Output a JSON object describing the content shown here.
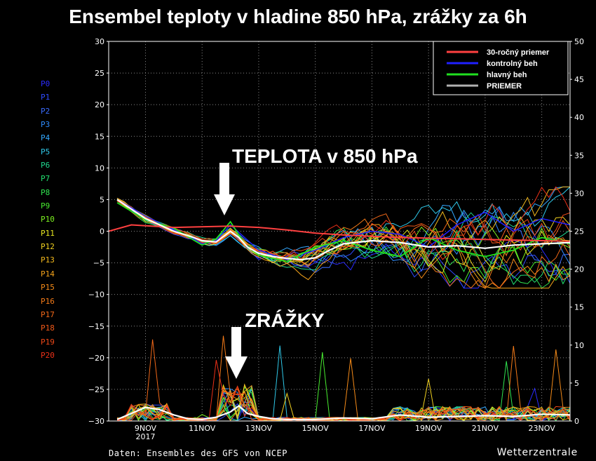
{
  "title": "Ensembel teploty v hladine 850 hPa, zrážky za 6h",
  "footer": {
    "source": "Daten: Ensembles des GFS von NCEP",
    "brand": "Wetterzentrale"
  },
  "members": [
    {
      "label": "P0",
      "color": "#2a2aff"
    },
    {
      "label": "P1",
      "color": "#2f4bff"
    },
    {
      "label": "P2",
      "color": "#3a6cff"
    },
    {
      "label": "P3",
      "color": "#2f8dff"
    },
    {
      "label": "P4",
      "color": "#34a8ff"
    },
    {
      "label": "P5",
      "color": "#2fc8e8"
    },
    {
      "label": "P6",
      "color": "#20d890"
    },
    {
      "label": "P7",
      "color": "#22e070"
    },
    {
      "label": "P8",
      "color": "#30e650"
    },
    {
      "label": "P9",
      "color": "#48ec30"
    },
    {
      "label": "P10",
      "color": "#7cf020"
    },
    {
      "label": "P11",
      "color": "#e8e820"
    },
    {
      "label": "P12",
      "color": "#f0d020"
    },
    {
      "label": "P13",
      "color": "#f2b81c"
    },
    {
      "label": "P14",
      "color": "#f3a21a"
    },
    {
      "label": "P15",
      "color": "#f48a18"
    },
    {
      "label": "P16",
      "color": "#f47a18"
    },
    {
      "label": "P17",
      "color": "#f26818"
    },
    {
      "label": "P18",
      "color": "#f05818"
    },
    {
      "label": "P19",
      "color": "#ee4818"
    },
    {
      "label": "P20",
      "color": "#ec3018"
    }
  ],
  "annotations": {
    "temp": "TEPLOTA v 850 hPa",
    "precip": "ZRÁŽKY"
  },
  "legend": [
    {
      "label": "30-ročný priemer",
      "color": "#ff4040"
    },
    {
      "label": "kontrolný beh",
      "color": "#2020ff"
    },
    {
      "label": "hlavný beh",
      "color": "#20e020"
    },
    {
      "label": "PRIEMER",
      "color": "#b0b0b0"
    }
  ],
  "chart_data": {
    "type": "line",
    "x_ticks": [
      "9NOV",
      "11NOV",
      "13NOV",
      "15NOV",
      "17NOV",
      "19NOV",
      "21NOV",
      "23NOV"
    ],
    "x_year": "2017",
    "y_left": {
      "range": [
        -30,
        30
      ],
      "ticks": [
        -30,
        -25,
        -20,
        -15,
        -10,
        -5,
        0,
        5,
        10,
        15,
        20,
        25,
        30
      ]
    },
    "y_right": {
      "range": [
        0,
        50
      ],
      "ticks": [
        0,
        5,
        10,
        15,
        20,
        25,
        30,
        35,
        40,
        45,
        50
      ]
    },
    "x_range_days": [
      7.7,
      24.0
    ],
    "grid": true,
    "legend_position": "top-right",
    "climatology": {
      "x": [
        7.7,
        8.5,
        10,
        12,
        13,
        14,
        15,
        16,
        17,
        18,
        19,
        20,
        21,
        22,
        23,
        24
      ],
      "y": [
        0,
        1,
        0.6,
        0.8,
        0.6,
        0.2,
        -0.3,
        -0.6,
        -0.8,
        -1.0,
        -1.1,
        -1.2,
        -1.3,
        -1.4,
        -1.5,
        -1.6
      ]
    },
    "mean_temp": {
      "x": [
        8,
        9,
        10,
        10.7,
        11,
        11.5,
        12,
        12.3,
        12.6,
        13,
        13.5,
        14,
        14.5,
        15,
        15.5,
        16,
        17,
        18,
        19,
        20,
        21,
        22,
        23,
        24
      ],
      "y": [
        5,
        2,
        0,
        -1,
        -1.5,
        -1.7,
        0,
        -1,
        -2.5,
        -3.5,
        -4,
        -4.3,
        -4.5,
        -4.2,
        -3,
        -2,
        -1.5,
        -1.8,
        -2.5,
        -2.3,
        -2.7,
        -2.2,
        -2.0,
        -1.8
      ]
    },
    "control_temp": {
      "x": [
        8,
        9,
        10,
        10.7,
        11,
        11.5,
        12,
        12.5,
        13,
        14,
        15,
        16,
        17,
        18,
        19,
        20,
        21,
        22,
        23,
        24
      ],
      "y": [
        5,
        2.4,
        0.2,
        -1.2,
        -2,
        -1.5,
        1,
        -1,
        -3,
        -4.5,
        -3,
        -1,
        0,
        -0.5,
        -2.5,
        1,
        3,
        0,
        2,
        1
      ]
    },
    "main_temp": {
      "x": [
        8,
        9,
        10,
        10.7,
        11,
        11.5,
        12,
        12.5,
        13,
        14,
        15,
        16,
        17,
        18,
        19,
        20,
        21,
        22,
        23,
        24
      ],
      "y": [
        4.5,
        1.8,
        0.5,
        -1.4,
        -2.2,
        -1.2,
        1.5,
        -2,
        -3.8,
        -4.8,
        -2.5,
        -1.5,
        -3,
        -4,
        -1,
        -3,
        -4,
        -3,
        -1,
        -2
      ]
    },
    "mean_precip": {
      "x": [
        8,
        8.5,
        9,
        9.5,
        10,
        10.5,
        11,
        11.5,
        12,
        12.3,
        12.6,
        13,
        13.5,
        14,
        15,
        16,
        17,
        18,
        19,
        20,
        21,
        22,
        23,
        24
      ],
      "y": [
        0.2,
        1.0,
        1.8,
        1.5,
        0.8,
        0.3,
        0.2,
        0.5,
        1.2,
        2.0,
        1.0,
        0.6,
        0.3,
        0.2,
        0.2,
        0.4,
        0.3,
        0.8,
        0.5,
        0.6,
        0.7,
        0.6,
        0.9,
        0.8
      ]
    }
  }
}
